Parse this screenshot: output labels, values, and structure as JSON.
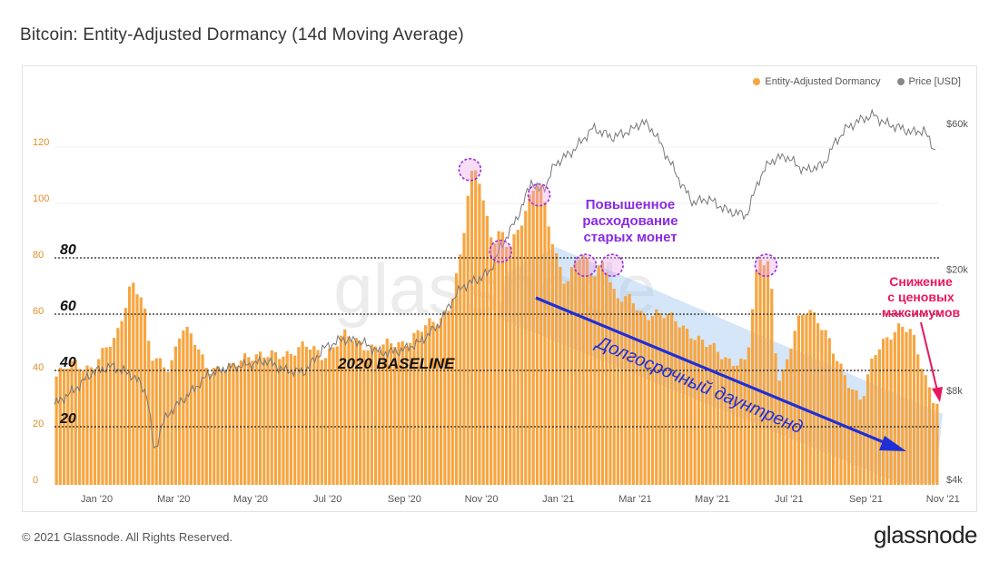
{
  "title": "Bitcoin: Entity-Adjusted Dormancy (14d Moving Average)",
  "footer": "© 2021 Glassnode. All Rights Reserved.",
  "brand": "glassnode",
  "watermark": "glassnode",
  "colors": {
    "dormancy": "#f7a540",
    "price": "#888888",
    "left_axis": "#e0902a",
    "annotation_purple": "#8a2be2",
    "annotation_pink": "#e8175d",
    "trend_arrow": "#1f2fd6",
    "channel": "#9fc8ef"
  },
  "legend": [
    {
      "label": "Entity-Adjusted Dormancy",
      "color": "#f7a540"
    },
    {
      "label": "Price [USD]",
      "color": "#888888"
    }
  ],
  "chart_data": {
    "type": "bar",
    "x_ticks": [
      "Jan '20",
      "Mar '20",
      "May '20",
      "Jul '20",
      "Sep '20",
      "Nov '20",
      "Jan '21",
      "Mar '21",
      "May '21",
      "Jul '21",
      "Sep '21",
      "Nov '21"
    ],
    "left_axis": {
      "ticks": [
        "0",
        "20",
        "40",
        "60",
        "80",
        "100",
        "120"
      ],
      "range": [
        0,
        135
      ]
    },
    "right_axis": {
      "ticks": [
        "$4k",
        "$8k",
        "$20k",
        "$60k"
      ],
      "scale": "log",
      "range": [
        4000,
        85000
      ]
    },
    "series": [
      {
        "name": "Entity-Adjusted Dormancy",
        "kind": "bars",
        "x_month": [
          0,
          0.5,
          1,
          1.3,
          1.6,
          2,
          2.3,
          2.5,
          2.8,
          3,
          3.3,
          3.6,
          4,
          4.5,
          5,
          5.5,
          6,
          6.5,
          7,
          7.5,
          8,
          8.5,
          9,
          9.5,
          10,
          10.3,
          10.6,
          10.8,
          11,
          11.2,
          11.4,
          11.6,
          11.8,
          12,
          12.2,
          12.4,
          12.6,
          12.8,
          13,
          13.3,
          13.6,
          13.8,
          14,
          14.3,
          14.6,
          15,
          15.3,
          15.6,
          16,
          16.5,
          17,
          17.5,
          18,
          18.3,
          18.6,
          18.8,
          19,
          19.3,
          19.6,
          19.8,
          20,
          20.3,
          20.6,
          21,
          21.3,
          21.6,
          21.8,
          22,
          22.3,
          22.6,
          22.9
        ],
        "values": [
          38,
          43,
          42,
          47,
          52,
          73,
          65,
          45,
          44,
          42,
          55,
          52,
          42,
          40,
          47,
          45,
          47,
          49,
          46,
          53,
          50,
          49,
          50,
          55,
          58,
          65,
          84,
          108,
          112,
          98,
          87,
          90,
          83,
          88,
          96,
          105,
          109,
          95,
          82,
          72,
          82,
          80,
          73,
          80,
          67,
          65,
          60,
          62,
          59,
          55,
          49,
          45,
          43,
          80,
          80,
          38,
          40,
          57,
          64,
          60,
          55,
          45,
          38,
          30,
          45,
          52,
          55,
          57,
          53,
          40,
          30
        ]
      },
      {
        "name": "Price [USD]",
        "kind": "line",
        "x_month": [
          0,
          0.5,
          1,
          1.5,
          2,
          2.2,
          2.4,
          2.6,
          2.8,
          3,
          3.5,
          4,
          4.5,
          5,
          5.5,
          6,
          6.5,
          7,
          7.5,
          8,
          8.5,
          9,
          9.5,
          10,
          10.3,
          10.6,
          11,
          11.3,
          11.6,
          12,
          12.2,
          12.4,
          12.6,
          12.8,
          13,
          13.5,
          14,
          14.5,
          15,
          15.3,
          15.6,
          16,
          16.3,
          16.6,
          17,
          17.5,
          18,
          18.3,
          18.6,
          19,
          19.5,
          20,
          20.3,
          20.6,
          21,
          21.3,
          21.6,
          22,
          22.3,
          22.6,
          22.9
        ],
        "values": [
          7200,
          8000,
          9200,
          9600,
          9000,
          8500,
          7800,
          5000,
          6200,
          6800,
          7800,
          9000,
          9500,
          9700,
          10000,
          9300,
          9200,
          11000,
          11800,
          11500,
          10600,
          10800,
          11500,
          13200,
          15500,
          17500,
          18500,
          19500,
          23500,
          29000,
          33000,
          39000,
          36000,
          38000,
          44000,
          49000,
          58000,
          54000,
          57000,
          61000,
          56000,
          45000,
          38000,
          33000,
          34000,
          31000,
          30000,
          39000,
          45000,
          47000,
          42000,
          44000,
          52000,
          58000,
          62000,
          64000,
          60000,
          58000,
          56000,
          57000,
          49000
        ]
      }
    ],
    "threshold_lines": [
      {
        "value": 80,
        "label": "80"
      },
      {
        "value": 60,
        "label": "60"
      },
      {
        "value": 40,
        "label": "40"
      },
      {
        "value": 20,
        "label": "20"
      }
    ],
    "circled_peaks": [
      {
        "x_month": 10.8,
        "value": 112
      },
      {
        "x_month": 11.6,
        "value": 83
      },
      {
        "x_month": 12.6,
        "value": 103
      },
      {
        "x_month": 13.8,
        "value": 78
      },
      {
        "x_month": 14.5,
        "value": 78
      },
      {
        "x_month": 18.5,
        "value": 78
      }
    ],
    "annotations": {
      "baseline": "2020 BASELINE",
      "spending": [
        "Повышенное",
        "расходование",
        "старых монет"
      ],
      "downtrend": "Долгосрочный даунтренд",
      "decline": [
        "Снижение",
        "с ценовых",
        "максимумов"
      ]
    }
  }
}
